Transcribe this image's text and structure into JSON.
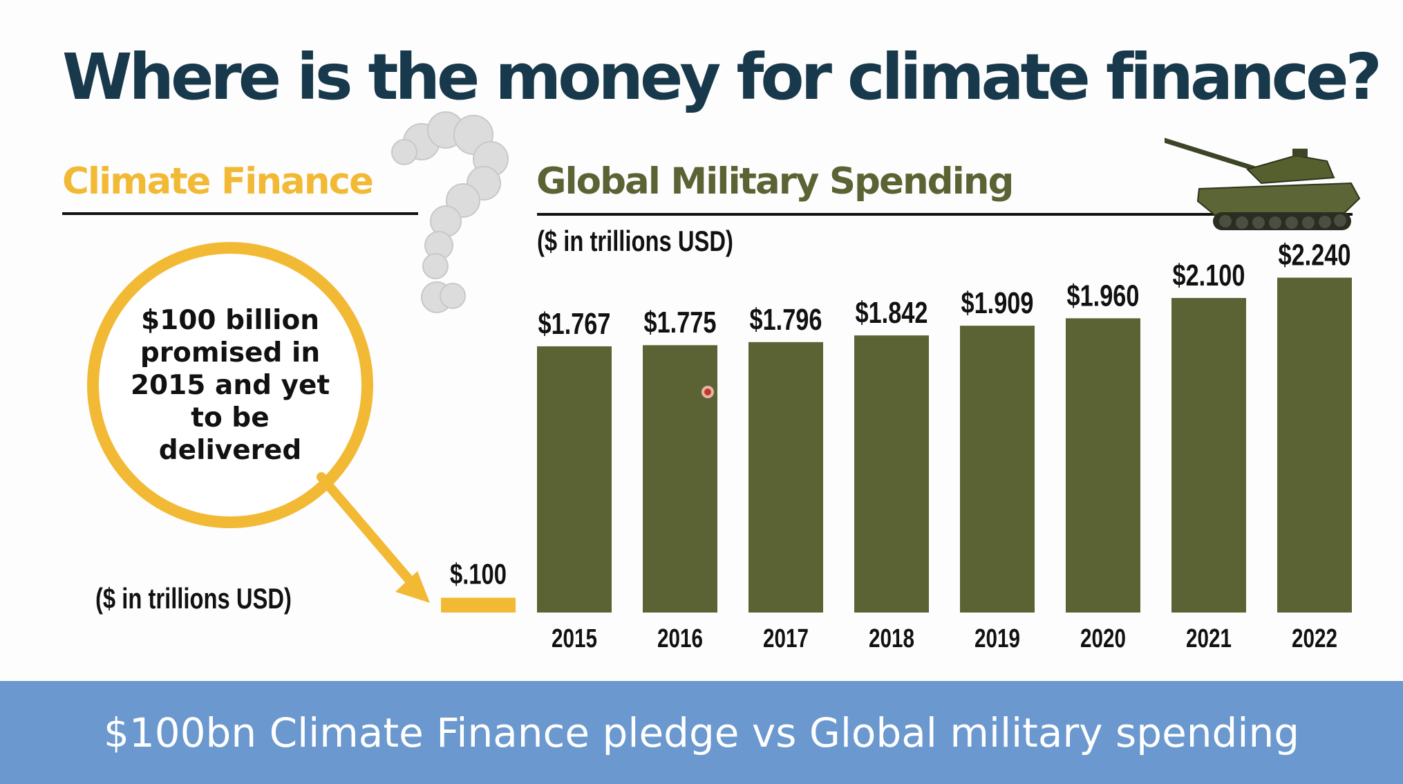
{
  "slide": {
    "title": "Where is the money for climate finance?",
    "left_heading": "Climate Finance",
    "right_heading": "Global Military Spending",
    "left_unit_label": "($ in trillions USD)",
    "right_unit_label": "($ in trillions USD)",
    "callout_text": "$100 billion promised in 2015 and yet to be delivered",
    "footer_caption": "$100bn Climate Finance pledge vs Global military spending"
  },
  "colors": {
    "title": "#17394b",
    "climate": "#f2b935",
    "military": "#5b6334",
    "footer": "#6a98cf"
  },
  "icons": [
    "smoke-question-mark-icon",
    "tank-icon",
    "arrow-icon",
    "cursor-marker-icon"
  ],
  "chart_data": [
    {
      "type": "bar",
      "title": "Climate Finance",
      "ylabel": "($ in trillions USD)",
      "categories": [
        ""
      ],
      "values": [
        0.1
      ],
      "value_labels": [
        "$.100"
      ]
    },
    {
      "type": "bar",
      "title": "Global Military Spending",
      "ylabel": "($ in trillions USD)",
      "categories": [
        "2015",
        "2016",
        "2017",
        "2018",
        "2019",
        "2020",
        "2021",
        "2022"
      ],
      "values": [
        1.767,
        1.775,
        1.796,
        1.842,
        1.909,
        1.96,
        2.1,
        2.24
      ],
      "value_labels": [
        "$1.767",
        "$1.775",
        "$1.796",
        "$1.842",
        "$1.909",
        "$1.960",
        "$2.100",
        "$2.240"
      ],
      "ylim": [
        0,
        2.24
      ],
      "grid": false,
      "legend": "none"
    }
  ]
}
